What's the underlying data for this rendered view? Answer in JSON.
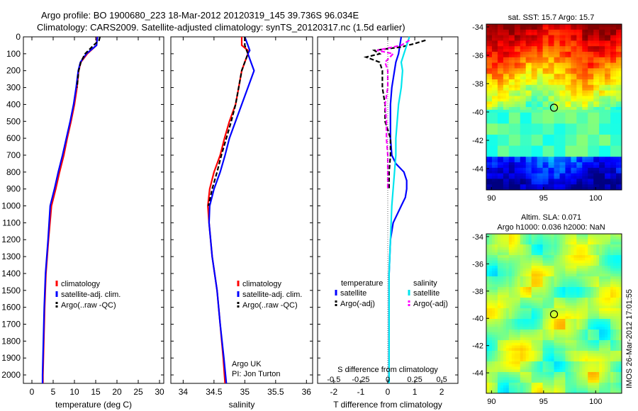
{
  "title_line1": "Argo profile: BO 1900680_223 18-Mar-2012 20120319_145 39.736S 96.034E",
  "title_line2": "Climatology: CARS2009. Satellite-adjusted climatology: synTS_20120317.nc (1.5d earlier)",
  "sst_title": "sat. SST: 15.7 Argo: 15.7",
  "sla_title1": "Altim. SLA: 0.071",
  "sla_title2": "Argo h1000: 0.036 h2000: NaN",
  "credit1": "Argo UK",
  "credit2": "PI: Jon Turton",
  "timestamp": "IMOS 26-Mar-2012 17:01:55",
  "colors": {
    "climatology": "#ff0000",
    "satellite": "#0000ff",
    "argo": "#000000",
    "sal_satellite": "#00e5ee",
    "sal_argo": "#ff00ff"
  },
  "chart_data": [
    {
      "type": "line",
      "id": "temperature",
      "xlabel": "temperature (deg C)",
      "ylabel": "",
      "xlim": [
        -2,
        31
      ],
      "ylim": [
        2050,
        0
      ],
      "xticks": [
        0,
        5,
        10,
        15,
        20,
        25,
        30
      ],
      "yticks": [
        0,
        100,
        200,
        300,
        400,
        500,
        600,
        700,
        800,
        900,
        1000,
        1100,
        1200,
        1300,
        1400,
        1500,
        1600,
        1700,
        1800,
        1900,
        2000
      ],
      "legend": [
        "climatology",
        "satellite-adj. clim.",
        "Argo(..raw -QC)"
      ],
      "legend_position": "lower-right",
      "series": [
        {
          "name": "climatology",
          "color": "#ff0000",
          "dash": false,
          "depth": [
            0,
            50,
            100,
            150,
            200,
            300,
            400,
            500,
            600,
            700,
            800,
            900,
            1000,
            1200,
            1400,
            1600,
            1800,
            2000,
            2050
          ],
          "values": [
            15.3,
            15.2,
            13.0,
            11.5,
            11.0,
            10.6,
            10.0,
            9.2,
            8.3,
            7.5,
            6.5,
            5.6,
            4.6,
            3.9,
            3.3,
            3.0,
            2.8,
            2.6,
            2.6
          ]
        },
        {
          "name": "satellite-adj. clim.",
          "color": "#0000ff",
          "dash": false,
          "depth": [
            0,
            50,
            100,
            150,
            200,
            300,
            400,
            500,
            600,
            700,
            800,
            900,
            1000,
            1200,
            1400,
            1600,
            1800,
            2000,
            2050
          ],
          "values": [
            15.4,
            15.2,
            12.8,
            11.4,
            10.9,
            10.4,
            9.8,
            9.0,
            8.1,
            7.2,
            6.2,
            5.3,
            4.3,
            3.8,
            3.2,
            2.9,
            2.7,
            2.5,
            2.5
          ]
        },
        {
          "name": "Argo(..raw -QC)",
          "color": "#000000",
          "dash": true,
          "depth": [
            0,
            20,
            50,
            100,
            150,
            200,
            250,
            300
          ],
          "values": [
            16.0,
            15.8,
            14.5,
            12.5,
            11.5,
            11.0,
            10.8,
            10.6
          ]
        }
      ]
    },
    {
      "type": "line",
      "id": "salinity",
      "xlabel": "salinity",
      "ylabel": "",
      "xlim": [
        33.8,
        36.1
      ],
      "ylim": [
        2050,
        0
      ],
      "xticks": [
        34,
        34.5,
        35,
        35.5,
        36
      ],
      "legend": [
        "climatology",
        "satellite-adj. clim.",
        "Argo(..raw -QC)"
      ],
      "legend_position": "lower-right",
      "series": [
        {
          "name": "climatology",
          "color": "#ff0000",
          "dash": false,
          "depth": [
            0,
            50,
            80,
            100,
            150,
            200,
            300,
            400,
            500,
            600,
            700,
            800,
            900,
            1000,
            1100,
            1300,
            1500,
            1700,
            1900,
            2050
          ],
          "values": [
            34.95,
            34.95,
            35.05,
            35.05,
            35.0,
            34.95,
            34.9,
            34.85,
            34.75,
            34.67,
            34.6,
            34.5,
            34.43,
            34.4,
            34.42,
            34.47,
            34.55,
            34.6,
            34.65,
            34.68
          ]
        },
        {
          "name": "satellite-adj. clim.",
          "color": "#0000ff",
          "dash": false,
          "depth": [
            0,
            50,
            80,
            100,
            150,
            200,
            300,
            400,
            500,
            600,
            700,
            800,
            900,
            1000,
            1100,
            1300,
            1500,
            1700,
            1900,
            2050
          ],
          "values": [
            35.0,
            35.05,
            35.08,
            35.05,
            35.1,
            35.15,
            35.05,
            34.95,
            34.85,
            34.75,
            34.68,
            34.6,
            34.5,
            34.43,
            34.42,
            34.47,
            34.55,
            34.6,
            34.66,
            34.7
          ]
        },
        {
          "name": "Argo(..raw -QC)",
          "color": "#000000",
          "dash": true,
          "depth": [
            0,
            50,
            100,
            150,
            200,
            300,
            400,
            500,
            600,
            700,
            800,
            900,
            1000
          ],
          "values": [
            35.0,
            35.0,
            35.05,
            35.0,
            34.95,
            34.9,
            34.85,
            34.78,
            34.7,
            34.62,
            34.55,
            34.47,
            34.41
          ]
        }
      ]
    },
    {
      "type": "line",
      "id": "difference",
      "xlabel": "T difference from climatology",
      "xlabel_top": "S difference from climatology",
      "xlim": [
        -2.6,
        2.6
      ],
      "ylim": [
        2050,
        0
      ],
      "xticks": [
        -2,
        -1,
        0,
        1,
        2
      ],
      "xtick_labels_top": [
        "-0.5",
        "-0.25",
        "0",
        "0.25",
        "0.5"
      ],
      "legend_headers": [
        "temperature",
        "salinity"
      ],
      "legend": [
        "satellite",
        "Argo(-adj)",
        "satellite",
        "Argo(-adj)"
      ],
      "legend_position": "lower-center",
      "series": [
        {
          "name": "satellite",
          "color": "#0000ff",
          "dash": false,
          "depth": [
            0,
            50,
            100,
            150,
            200,
            300,
            400,
            500,
            600,
            700,
            750,
            800,
            850,
            900,
            950,
            1000,
            1100,
            1200,
            1400,
            1600,
            1800,
            2000,
            2050
          ],
          "values": [
            0.5,
            0.45,
            0.4,
            0.3,
            0.25,
            0.15,
            0.1,
            0.1,
            0.1,
            0.15,
            0.3,
            0.6,
            0.7,
            0.7,
            0.65,
            0.5,
            0.2,
            0.1,
            0.05,
            0.05,
            0.05,
            0.05,
            0.05
          ]
        },
        {
          "name": "Argo(-adj)",
          "color": "#000000",
          "dash": true,
          "depth": [
            20,
            40,
            60,
            80,
            100,
            120,
            150,
            200,
            300,
            400,
            500,
            600,
            700,
            800,
            900
          ],
          "values": [
            1.4,
            1.0,
            0.5,
            -0.5,
            -0.3,
            -0.8,
            -0.3,
            -0.2,
            -0.2,
            -0.1,
            -0.1,
            0.1,
            0.1,
            0.05,
            0.05
          ]
        },
        {
          "name": "satellite",
          "color": "#00e5ee",
          "dash": false,
          "depth": [
            0,
            50,
            100,
            150,
            200,
            300,
            400,
            500,
            600,
            700,
            800,
            900,
            1000,
            1200,
            1400,
            1600,
            1800,
            2000,
            2050
          ],
          "values": [
            0.8,
            0.7,
            0.6,
            0.5,
            0.55,
            0.5,
            0.4,
            0.35,
            0.3,
            0.3,
            0.25,
            0.2,
            0.15,
            0.1,
            0.05,
            0.05,
            0.05,
            0.05,
            0.05
          ]
        },
        {
          "name": "Argo(-adj)",
          "color": "#ff00ff",
          "dash": true,
          "depth": [
            20,
            50,
            80,
            100,
            150,
            200,
            300,
            400,
            500,
            600,
            700,
            800,
            900
          ],
          "values": [
            0.8,
            0.5,
            -0.4,
            0.2,
            -0.1,
            0.0,
            0.0,
            -0.1,
            -0.05,
            -0.05,
            0.0,
            0.0,
            0.0
          ]
        }
      ]
    },
    {
      "type": "heatmap",
      "id": "sst_map",
      "title": "sat. SST: 15.7 Argo: 15.7",
      "xlim": [
        89.5,
        102.5
      ],
      "ylim": [
        -45.5,
        -33.8
      ],
      "xticks": [
        90,
        95,
        100
      ],
      "yticks": [
        -34,
        -36,
        -38,
        -40,
        -42,
        -44
      ],
      "marker": {
        "lon": 96.0,
        "lat": -39.7
      }
    },
    {
      "type": "heatmap",
      "id": "sla_map",
      "title": "Altim. SLA: 0.071 / Argo h1000: 0.036 h2000: NaN",
      "xlim": [
        89.5,
        102.5
      ],
      "ylim": [
        -45.5,
        -33.8
      ],
      "xticks": [
        90,
        95,
        100
      ],
      "yticks": [
        -34,
        -36,
        -38,
        -40,
        -42,
        -44
      ],
      "marker": {
        "lon": 96.0,
        "lat": -39.7
      }
    }
  ]
}
